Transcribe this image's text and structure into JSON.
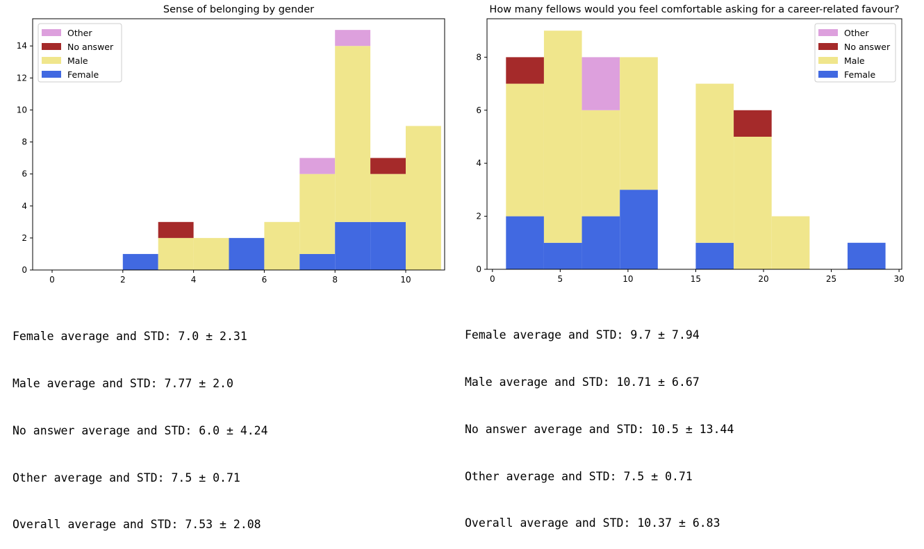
{
  "chart_data": [
    {
      "type": "bar",
      "title": "Sense of belonging by gender",
      "stacked": true,
      "xlim": [
        -0.55,
        11.1
      ],
      "ylim": [
        0,
        15.7
      ],
      "xticks": [
        0,
        2,
        4,
        6,
        8,
        10
      ],
      "yticks": [
        0,
        2,
        4,
        6,
        8,
        10,
        12,
        14
      ],
      "bin_edges": [
        2,
        3,
        4,
        5,
        6,
        7,
        8,
        9,
        10,
        11
      ],
      "legend_position": "upper-left",
      "series": [
        {
          "name": "Female",
          "color": "#4169e1",
          "values": [
            1,
            0,
            0,
            2,
            0,
            1,
            3,
            3,
            0
          ]
        },
        {
          "name": "Male",
          "color": "#f0e68c",
          "values": [
            0,
            2,
            2,
            0,
            3,
            5,
            11,
            3,
            9
          ]
        },
        {
          "name": "No answer",
          "color": "#a52a2a",
          "values": [
            0,
            1,
            0,
            0,
            0,
            0,
            0,
            1,
            0
          ]
        },
        {
          "name": "Other",
          "color": "#dda0dd",
          "values": [
            0,
            0,
            0,
            0,
            0,
            1,
            1,
            0,
            0
          ]
        }
      ],
      "legend": [
        "Other",
        "No answer",
        "Male",
        "Female"
      ],
      "grid": false
    },
    {
      "type": "bar",
      "title": "How many fellows would you feel comfortable asking for a career-related favour?",
      "stacked": true,
      "xlim": [
        -0.4,
        30.2
      ],
      "ylim": [
        0,
        9.45
      ],
      "xticks": [
        0,
        5,
        10,
        15,
        20,
        25,
        30
      ],
      "yticks": [
        0,
        2,
        4,
        6,
        8
      ],
      "bin_edges": [
        1,
        3.8,
        6.6,
        9.4,
        12.2,
        15,
        17.8,
        20.6,
        23.4,
        26.2,
        29
      ],
      "legend_position": "upper-right",
      "series": [
        {
          "name": "Female",
          "color": "#4169e1",
          "values": [
            2,
            1,
            2,
            3,
            0,
            1,
            0,
            0,
            0,
            1
          ]
        },
        {
          "name": "Male",
          "color": "#f0e68c",
          "values": [
            5,
            8,
            4,
            5,
            0,
            6,
            5,
            2,
            0,
            0
          ]
        },
        {
          "name": "No answer",
          "color": "#a52a2a",
          "values": [
            1,
            0,
            0,
            0,
            0,
            0,
            1,
            0,
            0,
            0
          ]
        },
        {
          "name": "Other",
          "color": "#dda0dd",
          "values": [
            0,
            0,
            2,
            0,
            0,
            0,
            0,
            0,
            0,
            0
          ]
        }
      ],
      "legend": [
        "Other",
        "No answer",
        "Male",
        "Female"
      ],
      "grid": false
    }
  ],
  "stats_left": [
    "Female average and STD: 7.0 ± 2.31",
    "Male average and STD: 7.77 ± 2.0",
    "No answer average and STD: 6.0 ± 4.24",
    "Other average and STD: 7.5 ± 0.71",
    "Overall average and STD: 7.53 ± 2.08"
  ],
  "stats_right": [
    "Female average and STD: 9.7 ± 7.94",
    "Male average and STD: 10.71 ± 6.67",
    "No answer average and STD: 10.5 ± 13.44",
    "Other average and STD: 7.5 ± 0.71",
    "Overall average and STD: 10.37 ± 6.83"
  ]
}
